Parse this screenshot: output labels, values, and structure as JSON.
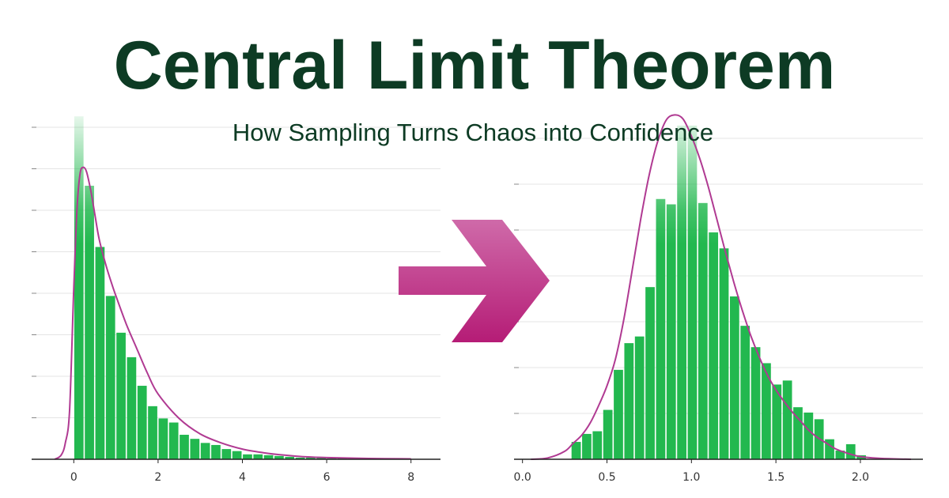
{
  "header": {
    "title": "Central Limit Theorem",
    "subtitle": "How Sampling Turns Chaos into Confidence"
  },
  "colors": {
    "title": "#0d3b24",
    "bar": "#22b84f",
    "curve": "#b03a92",
    "arrow_top": "#cf6aa9",
    "arrow_bottom": "#b51c76",
    "grid": "#e4e4e4",
    "axis": "#222222"
  },
  "arrow": {
    "icon": "right-arrow-icon"
  },
  "chart_data": [
    {
      "type": "bar",
      "title": "",
      "xlabel": "",
      "ylabel": "",
      "xlim": [
        -1.0,
        8.7
      ],
      "ylim": [
        0,
        0.85
      ],
      "xticks": [
        0,
        2,
        4,
        6,
        8
      ],
      "grid": true,
      "bin_width": 0.25,
      "bin_starts": [
        0,
        0.25,
        0.5,
        0.75,
        1,
        1.25,
        1.5,
        1.75,
        2,
        2.25,
        2.5,
        2.75,
        3,
        3.25,
        3.5,
        3.75,
        4,
        4.25,
        4.5,
        4.75,
        5,
        5.25,
        5.5,
        5.75,
        6,
        6.25,
        6.5,
        6.75,
        7,
        7.25,
        7.5,
        7.75,
        8,
        8.25
      ],
      "values": [
        0.84,
        0.67,
        0.52,
        0.4,
        0.31,
        0.25,
        0.18,
        0.13,
        0.1,
        0.09,
        0.06,
        0.05,
        0.04,
        0.035,
        0.025,
        0.02,
        0.012,
        0.012,
        0.01,
        0.008,
        0.006,
        0.004,
        0.004,
        0.003,
        0.002,
        0.002,
        0.001,
        0.001,
        0.001,
        0.001,
        0.001,
        0.001,
        0.001,
        0.001
      ],
      "curve": {
        "x": [
          -0.45,
          -0.3,
          -0.2,
          -0.1,
          0,
          0.08,
          0.15,
          0.22,
          0.3,
          0.4,
          0.5,
          0.6,
          0.75,
          0.9,
          1,
          1.25,
          1.5,
          1.75,
          2,
          2.5,
          3,
          3.5,
          4,
          4.5,
          5,
          5.5,
          6,
          7,
          8
        ],
        "y": [
          0,
          0.01,
          0.04,
          0.12,
          0.42,
          0.62,
          0.7,
          0.715,
          0.705,
          0.66,
          0.6,
          0.54,
          0.48,
          0.43,
          0.4,
          0.33,
          0.27,
          0.21,
          0.16,
          0.1,
          0.062,
          0.04,
          0.025,
          0.016,
          0.01,
          0.006,
          0.004,
          0.002,
          0.001
        ]
      }
    },
    {
      "type": "bar",
      "title": "",
      "xlabel": "",
      "ylabel": "",
      "xlim": [
        -0.05,
        2.37
      ],
      "ylim": [
        0,
        2.6
      ],
      "xticks": [
        0.0,
        0.5,
        1.0,
        1.5,
        2.0
      ],
      "grid": true,
      "bin_width": 0.0625,
      "bin_starts": [
        0.2875,
        0.35,
        0.4125,
        0.475,
        0.5375,
        0.6,
        0.6625,
        0.725,
        0.7875,
        0.85,
        0.9125,
        0.975,
        1.0375,
        1.1,
        1.1625,
        1.225,
        1.2875,
        1.35,
        1.4125,
        1.475,
        1.5375,
        1.6,
        1.6625,
        1.725,
        1.7875,
        1.85,
        1.9125,
        1.975
      ],
      "values": [
        0.13,
        0.19,
        0.21,
        0.37,
        0.67,
        0.87,
        0.92,
        1.29,
        1.95,
        1.91,
        2.5,
        2.5,
        1.92,
        1.7,
        1.58,
        1.22,
        1.0,
        0.84,
        0.72,
        0.56,
        0.59,
        0.39,
        0.35,
        0.3,
        0.15,
        0.065,
        0.113,
        0.03
      ],
      "curve": {
        "x": [
          0.05,
          0.15,
          0.25,
          0.3,
          0.35,
          0.4,
          0.45,
          0.5,
          0.55,
          0.6,
          0.65,
          0.7,
          0.75,
          0.8,
          0.85,
          0.9,
          0.95,
          1.0,
          1.05,
          1.1,
          1.15,
          1.2,
          1.25,
          1.3,
          1.35,
          1.4,
          1.45,
          1.5,
          1.55,
          1.6,
          1.65,
          1.7,
          1.75,
          1.8,
          1.85,
          1.9,
          1.95,
          2.0,
          2.1,
          2.2,
          2.3
        ],
        "y": [
          0,
          0.01,
          0.06,
          0.12,
          0.18,
          0.27,
          0.4,
          0.55,
          0.75,
          1.05,
          1.42,
          1.8,
          2.13,
          2.38,
          2.54,
          2.58,
          2.55,
          2.42,
          2.25,
          2.04,
          1.8,
          1.56,
          1.33,
          1.12,
          0.93,
          0.77,
          0.63,
          0.52,
          0.43,
          0.35,
          0.28,
          0.21,
          0.16,
          0.12,
          0.08,
          0.055,
          0.035,
          0.02,
          0.008,
          0.003,
          0
        ]
      }
    }
  ]
}
